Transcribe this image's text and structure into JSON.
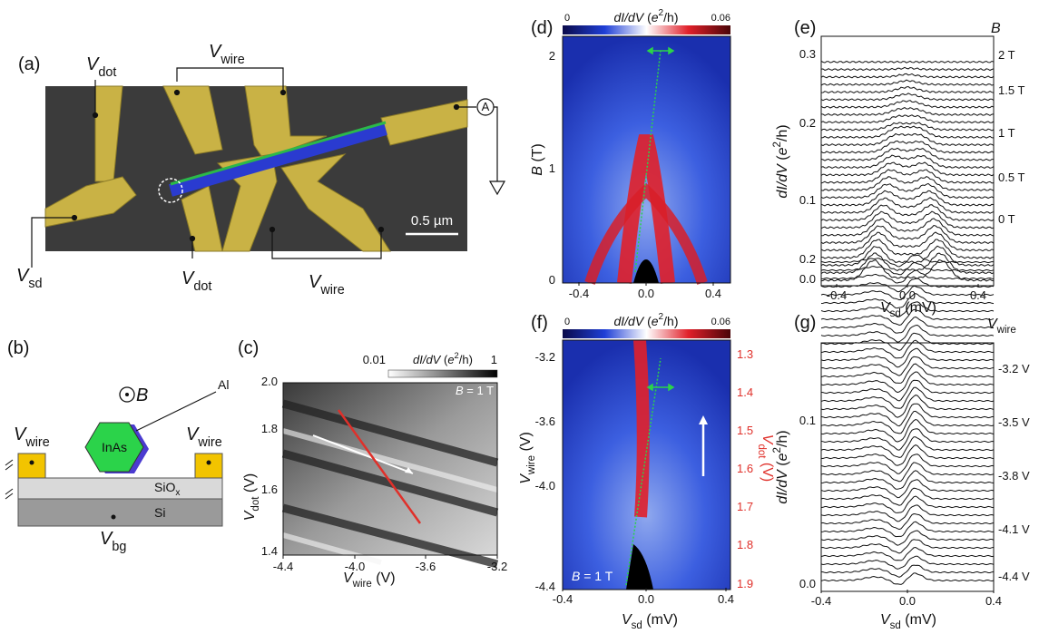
{
  "symbols": {
    "V": "V",
    "dot": "dot",
    "wire": "wire",
    "sd": "sd",
    "bg": "bg",
    "B": "B",
    "dIdV": "dI/dV",
    "open": " (",
    "e": "e",
    "two": "2",
    "close": "/h)",
    "uV": " (V)",
    "umV": " (mV)",
    "uT": " (T)",
    "eq": " = 1 T"
  },
  "panel_a": {
    "label": "(a)",
    "scale_bar": "0.5 µm",
    "ammeter": "A"
  },
  "panel_b": {
    "label": "(b)",
    "al": "Al",
    "inas": "InAs",
    "sio": "SiO",
    "x": "x",
    "si": "Si"
  },
  "panel_c": {
    "label": "(c)",
    "xticks": [
      "-4.4",
      "-4.0",
      "-3.6",
      "-3.2"
    ],
    "yticks": [
      "2.0",
      "1.8",
      "1.6",
      "1.4"
    ],
    "cbar_ticks": [
      "0.01",
      "1"
    ]
  },
  "panel_d": {
    "label": "(d)",
    "xticks": [
      "-0.4",
      "0.0",
      "0.4"
    ],
    "yticks": [
      "0",
      "1",
      "2"
    ],
    "cbar_ticks": [
      "0",
      "0.06"
    ]
  },
  "panel_e": {
    "label": "(e)",
    "xticks": [
      "-0.4",
      "0.0",
      "0.4"
    ],
    "yticks": [
      "0.0",
      "0.1",
      "0.2",
      "0.3"
    ],
    "field_labels": [
      "2 T",
      "1.5 T",
      "1 T",
      "0.5 T",
      "0 T"
    ]
  },
  "panel_f": {
    "label": "(f)",
    "xticks": [
      "-0.4",
      "0.0",
      "0.4"
    ],
    "yticks": [
      "-3.2",
      "-3.6",
      "-4.0",
      "-4.4"
    ],
    "y2ticks": [
      "1.3",
      "1.4",
      "1.5",
      "1.6",
      "1.7",
      "1.8",
      "1.9"
    ],
    "cbar_ticks": [
      "0",
      "0.06"
    ]
  },
  "panel_g": {
    "label": "(g)",
    "xticks": [
      "-0.4",
      "0.0",
      "0.4"
    ],
    "yticks": [
      "0.0",
      "0.1",
      "0.2"
    ],
    "gate_labels": [
      "-3.2 V",
      "-3.5 V",
      "-3.8 V",
      "-4.1 V",
      "-4.4 V"
    ]
  }
}
